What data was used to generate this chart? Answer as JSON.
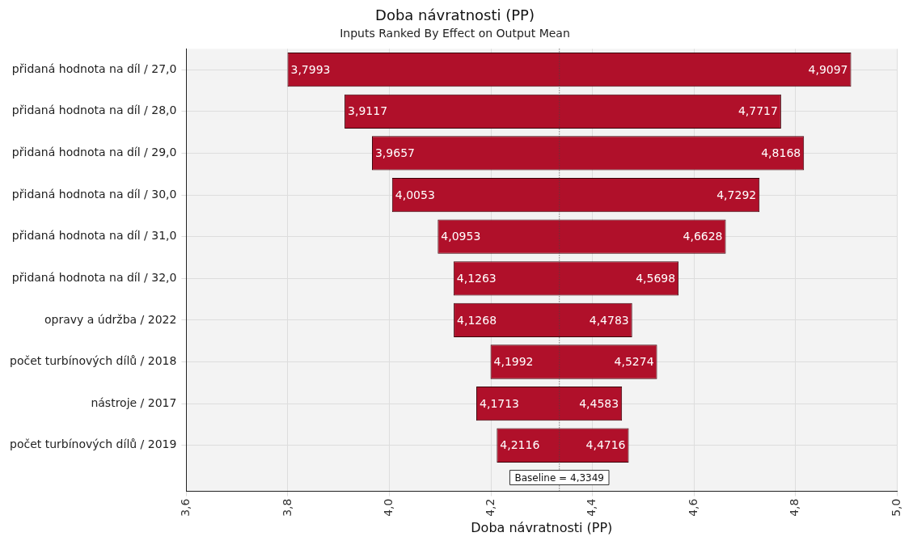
{
  "chart_data": {
    "type": "bar",
    "orientation": "horizontal",
    "title": "Doba návratnosti (PP)",
    "subtitle": "Inputs Ranked By Effect on Output Mean",
    "xlabel": "Doba návratnosti (PP)",
    "categories": [
      "přidaná hodnota na díl / 27,0",
      "přidaná hodnota na díl / 28,0",
      "přidaná hodnota na díl / 29,0",
      "přidaná hodnota na díl / 30,0",
      "přidaná hodnota na díl / 31,0",
      "přidaná hodnota na díl / 32,0",
      "opravy a údržba / 2022",
      "počet turbínových dílů / 2018",
      "nástroje / 2017",
      "počet turbínových dílů / 2019"
    ],
    "base": [
      3.7993,
      3.9117,
      3.9657,
      4.0053,
      4.0953,
      4.1263,
      4.1268,
      4.1992,
      4.1713,
      4.2116
    ],
    "values": [
      1.1104,
      0.86,
      0.8511,
      0.7239,
      0.5675,
      0.4435,
      0.3515,
      0.3282,
      0.287,
      0.26
    ],
    "color": "#b0102a",
    "xlim": [
      3.6,
      5.0
    ],
    "xticks": [
      {
        "value": 3.6,
        "label": "3,6"
      },
      {
        "value": 3.8,
        "label": "3,8"
      },
      {
        "value": 4.0,
        "label": "4,0"
      },
      {
        "value": 4.2,
        "label": "4,2"
      },
      {
        "value": 4.4,
        "label": "4,4"
      },
      {
        "value": 4.6,
        "label": "4,6"
      },
      {
        "value": 4.8,
        "label": "4,8"
      },
      {
        "value": 5.0,
        "label": "5,0"
      }
    ],
    "grid": true,
    "legend": false,
    "ref_lines": [
      {
        "axis": "x",
        "value": 4.3349,
        "label": "Baseline = 4,3349",
        "line_style": "dotted",
        "color": "#444444"
      }
    ],
    "annotations": [
      {
        "text": "3,7993",
        "x": 3.7993,
        "y": "přidaná hodnota na díl / 27,0"
      },
      {
        "text": "4,9097",
        "x": 4.9097,
        "y": "přidaná hodnota na díl / 27,0"
      },
      {
        "text": "3,9117",
        "x": 3.9117,
        "y": "přidaná hodnota na díl / 28,0"
      },
      {
        "text": "4,7717",
        "x": 4.7717,
        "y": "přidaná hodnota na díl / 28,0"
      },
      {
        "text": "3,9657",
        "x": 3.9657,
        "y": "přidaná hodnota na díl / 29,0"
      },
      {
        "text": "4,8168",
        "x": 4.8168,
        "y": "přidaná hodnota na díl / 29,0"
      },
      {
        "text": "4,0053",
        "x": 4.0053,
        "y": "přidaná hodnota na díl / 30,0"
      },
      {
        "text": "4,7292",
        "x": 4.7292,
        "y": "přidaná hodnota na díl / 30,0"
      },
      {
        "text": "4,0953",
        "x": 4.0953,
        "y": "přidaná hodnota na díl / 31,0"
      },
      {
        "text": "4,6628",
        "x": 4.6628,
        "y": "přidaná hodnota na díl / 31,0"
      },
      {
        "text": "4,1263",
        "x": 4.1263,
        "y": "přidaná hodnota na díl / 32,0"
      },
      {
        "text": "4,5698",
        "x": 4.5698,
        "y": "přidaná hodnota na díl / 32,0"
      },
      {
        "text": "4,1268",
        "x": 4.1268,
        "y": "opravy a údržba / 2022"
      },
      {
        "text": "4,4783",
        "x": 4.4783,
        "y": "opravy a údržba / 2022"
      },
      {
        "text": "4,1992",
        "x": 4.1992,
        "y": "počet turbínových dílů / 2018"
      },
      {
        "text": "4,5274",
        "x": 4.5274,
        "y": "počet turbínových dílů / 2018"
      },
      {
        "text": "4,1713",
        "x": 4.1713,
        "y": "nástroje / 2017"
      },
      {
        "text": "4,4583",
        "x": 4.4583,
        "y": "nástroje / 2017"
      },
      {
        "text": "4,2116",
        "x": 4.2116,
        "y": "počet turbínových dílů / 2019"
      },
      {
        "text": "4,4716",
        "x": 4.4716,
        "y": "počet turbínových dílů / 2019"
      }
    ]
  }
}
